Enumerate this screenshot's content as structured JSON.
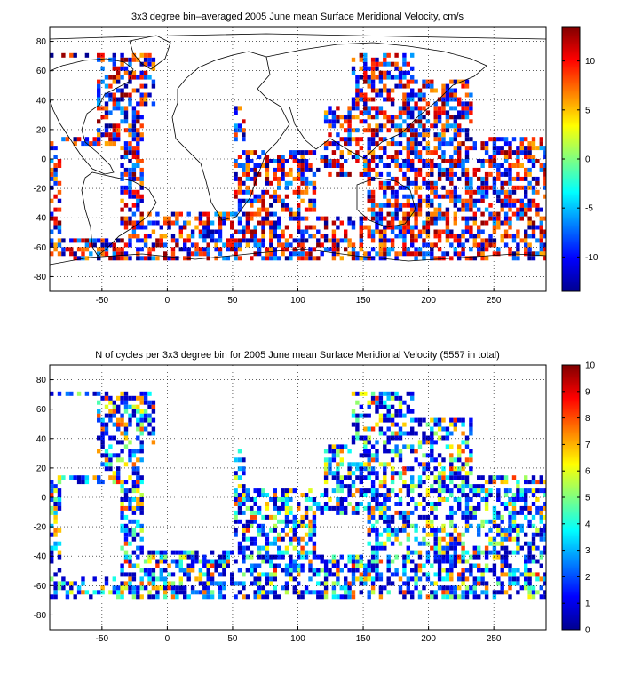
{
  "chart_data": [
    {
      "type": "heatmap",
      "title": "3x3 degree bin–averaged 2005 June mean Surface Meridional Velocity, cm/s",
      "xlim": [
        -90,
        290
      ],
      "ylim": [
        -90,
        90
      ],
      "x_ticks": [
        -50,
        0,
        50,
        100,
        150,
        200,
        250
      ],
      "y_ticks": [
        80,
        60,
        40,
        20,
        0,
        -20,
        -40,
        -60,
        -80
      ],
      "grid": true,
      "colorbar": {
        "range": [
          -13.5,
          13.5
        ],
        "ticks": [
          10,
          5,
          0,
          -5,
          -10
        ],
        "colormap": "jet"
      },
      "bin_size_deg": 3
    },
    {
      "type": "heatmap",
      "title": "N of cycles per 3x3 degree bin for 2005 June mean Surface Meridional Velocity (5557 in total)",
      "xlim": [
        -90,
        290
      ],
      "ylim": [
        -90,
        90
      ],
      "x_ticks": [
        -50,
        0,
        50,
        100,
        150,
        200,
        250
      ],
      "y_ticks": [
        80,
        60,
        40,
        20,
        0,
        -20,
        -40,
        -60,
        -80
      ],
      "grid": true,
      "colorbar": {
        "range": [
          0,
          10
        ],
        "ticks": [
          10,
          9,
          8,
          7,
          6,
          5,
          4,
          3,
          2,
          1,
          0
        ],
        "colormap": "jet"
      },
      "bin_size_deg": 3
    }
  ],
  "colors": {
    "axes": "#000000",
    "background": "#ffffff",
    "grid": "#000000"
  }
}
